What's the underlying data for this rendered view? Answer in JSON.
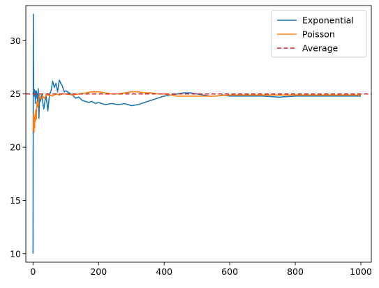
{
  "chart_data": {
    "type": "line",
    "title": "",
    "xlabel": "",
    "ylabel": "",
    "xlim": [
      -22,
      1032
    ],
    "ylim": [
      9.2,
      33.3
    ],
    "xticks": [
      0,
      200,
      400,
      600,
      800,
      1000
    ],
    "yticks": [
      10,
      15,
      20,
      25,
      30
    ],
    "grid": false,
    "legend_position": "top-right",
    "series": [
      {
        "name": "Exponential",
        "color": "#1f77b4",
        "style": "solid",
        "x": [
          0,
          1,
          2,
          3,
          4,
          5,
          6,
          7,
          8,
          9,
          10,
          12,
          14,
          16,
          18,
          20,
          22,
          25,
          28,
          30,
          33,
          36,
          40,
          45,
          50,
          55,
          60,
          65,
          70,
          75,
          80,
          85,
          90,
          95,
          100,
          110,
          120,
          130,
          140,
          150,
          160,
          170,
          180,
          190,
          200,
          220,
          240,
          260,
          280,
          300,
          320,
          340,
          360,
          380,
          400,
          420,
          440,
          460,
          480,
          500,
          520,
          540,
          560,
          580,
          600,
          650,
          700,
          750,
          800,
          850,
          900,
          950,
          1000
        ],
        "y": [
          10.0,
          32.5,
          25.5,
          24.8,
          25.4,
          24.9,
          25.3,
          24.1,
          25.2,
          24.6,
          25.3,
          25.0,
          24.2,
          25.5,
          22.7,
          24.8,
          24.3,
          24.6,
          25.0,
          24.1,
          23.6,
          24.3,
          24.8,
          23.4,
          24.9,
          25.3,
          26.2,
          25.6,
          26.0,
          25.2,
          26.3,
          26.0,
          25.7,
          25.2,
          25.3,
          25.1,
          24.9,
          24.6,
          24.7,
          24.4,
          24.3,
          24.2,
          24.3,
          24.1,
          24.2,
          24.0,
          24.1,
          24.0,
          24.1,
          23.9,
          24.0,
          24.2,
          24.4,
          24.6,
          24.8,
          24.9,
          25.0,
          25.1,
          25.1,
          25.0,
          24.9,
          24.8,
          24.8,
          24.9,
          24.8,
          24.8,
          24.8,
          24.7,
          24.8,
          24.8,
          24.8,
          24.8,
          24.8
        ]
      },
      {
        "name": "Poisson",
        "color": "#ff7f0e",
        "style": "solid",
        "x": [
          0,
          1,
          2,
          3,
          4,
          5,
          6,
          7,
          8,
          10,
          12,
          15,
          18,
          20,
          25,
          30,
          35,
          40,
          50,
          60,
          70,
          80,
          90,
          100,
          120,
          140,
          160,
          180,
          200,
          220,
          240,
          260,
          280,
          300,
          320,
          340,
          360,
          380,
          400,
          420,
          440,
          460,
          480,
          500,
          550,
          600,
          650,
          700,
          750,
          800,
          850,
          900,
          950,
          1000
        ],
        "y": [
          21.5,
          22.0,
          23.2,
          21.4,
          22.5,
          21.8,
          23.0,
          22.4,
          23.5,
          22.6,
          24.3,
          23.8,
          24.6,
          24.9,
          24.5,
          24.8,
          24.6,
          24.9,
          24.9,
          24.8,
          25.0,
          24.9,
          25.0,
          25.0,
          24.9,
          25.0,
          25.1,
          25.2,
          25.2,
          25.1,
          25.0,
          25.0,
          25.1,
          25.2,
          25.2,
          25.1,
          25.1,
          25.0,
          25.0,
          24.9,
          24.8,
          24.8,
          24.8,
          24.8,
          24.8,
          24.9,
          24.9,
          24.9,
          24.9,
          24.9,
          24.9,
          24.9,
          24.9,
          24.9
        ]
      },
      {
        "name": "Average",
        "color": "#d62728",
        "style": "dashed",
        "hline": 25.0
      }
    ]
  }
}
